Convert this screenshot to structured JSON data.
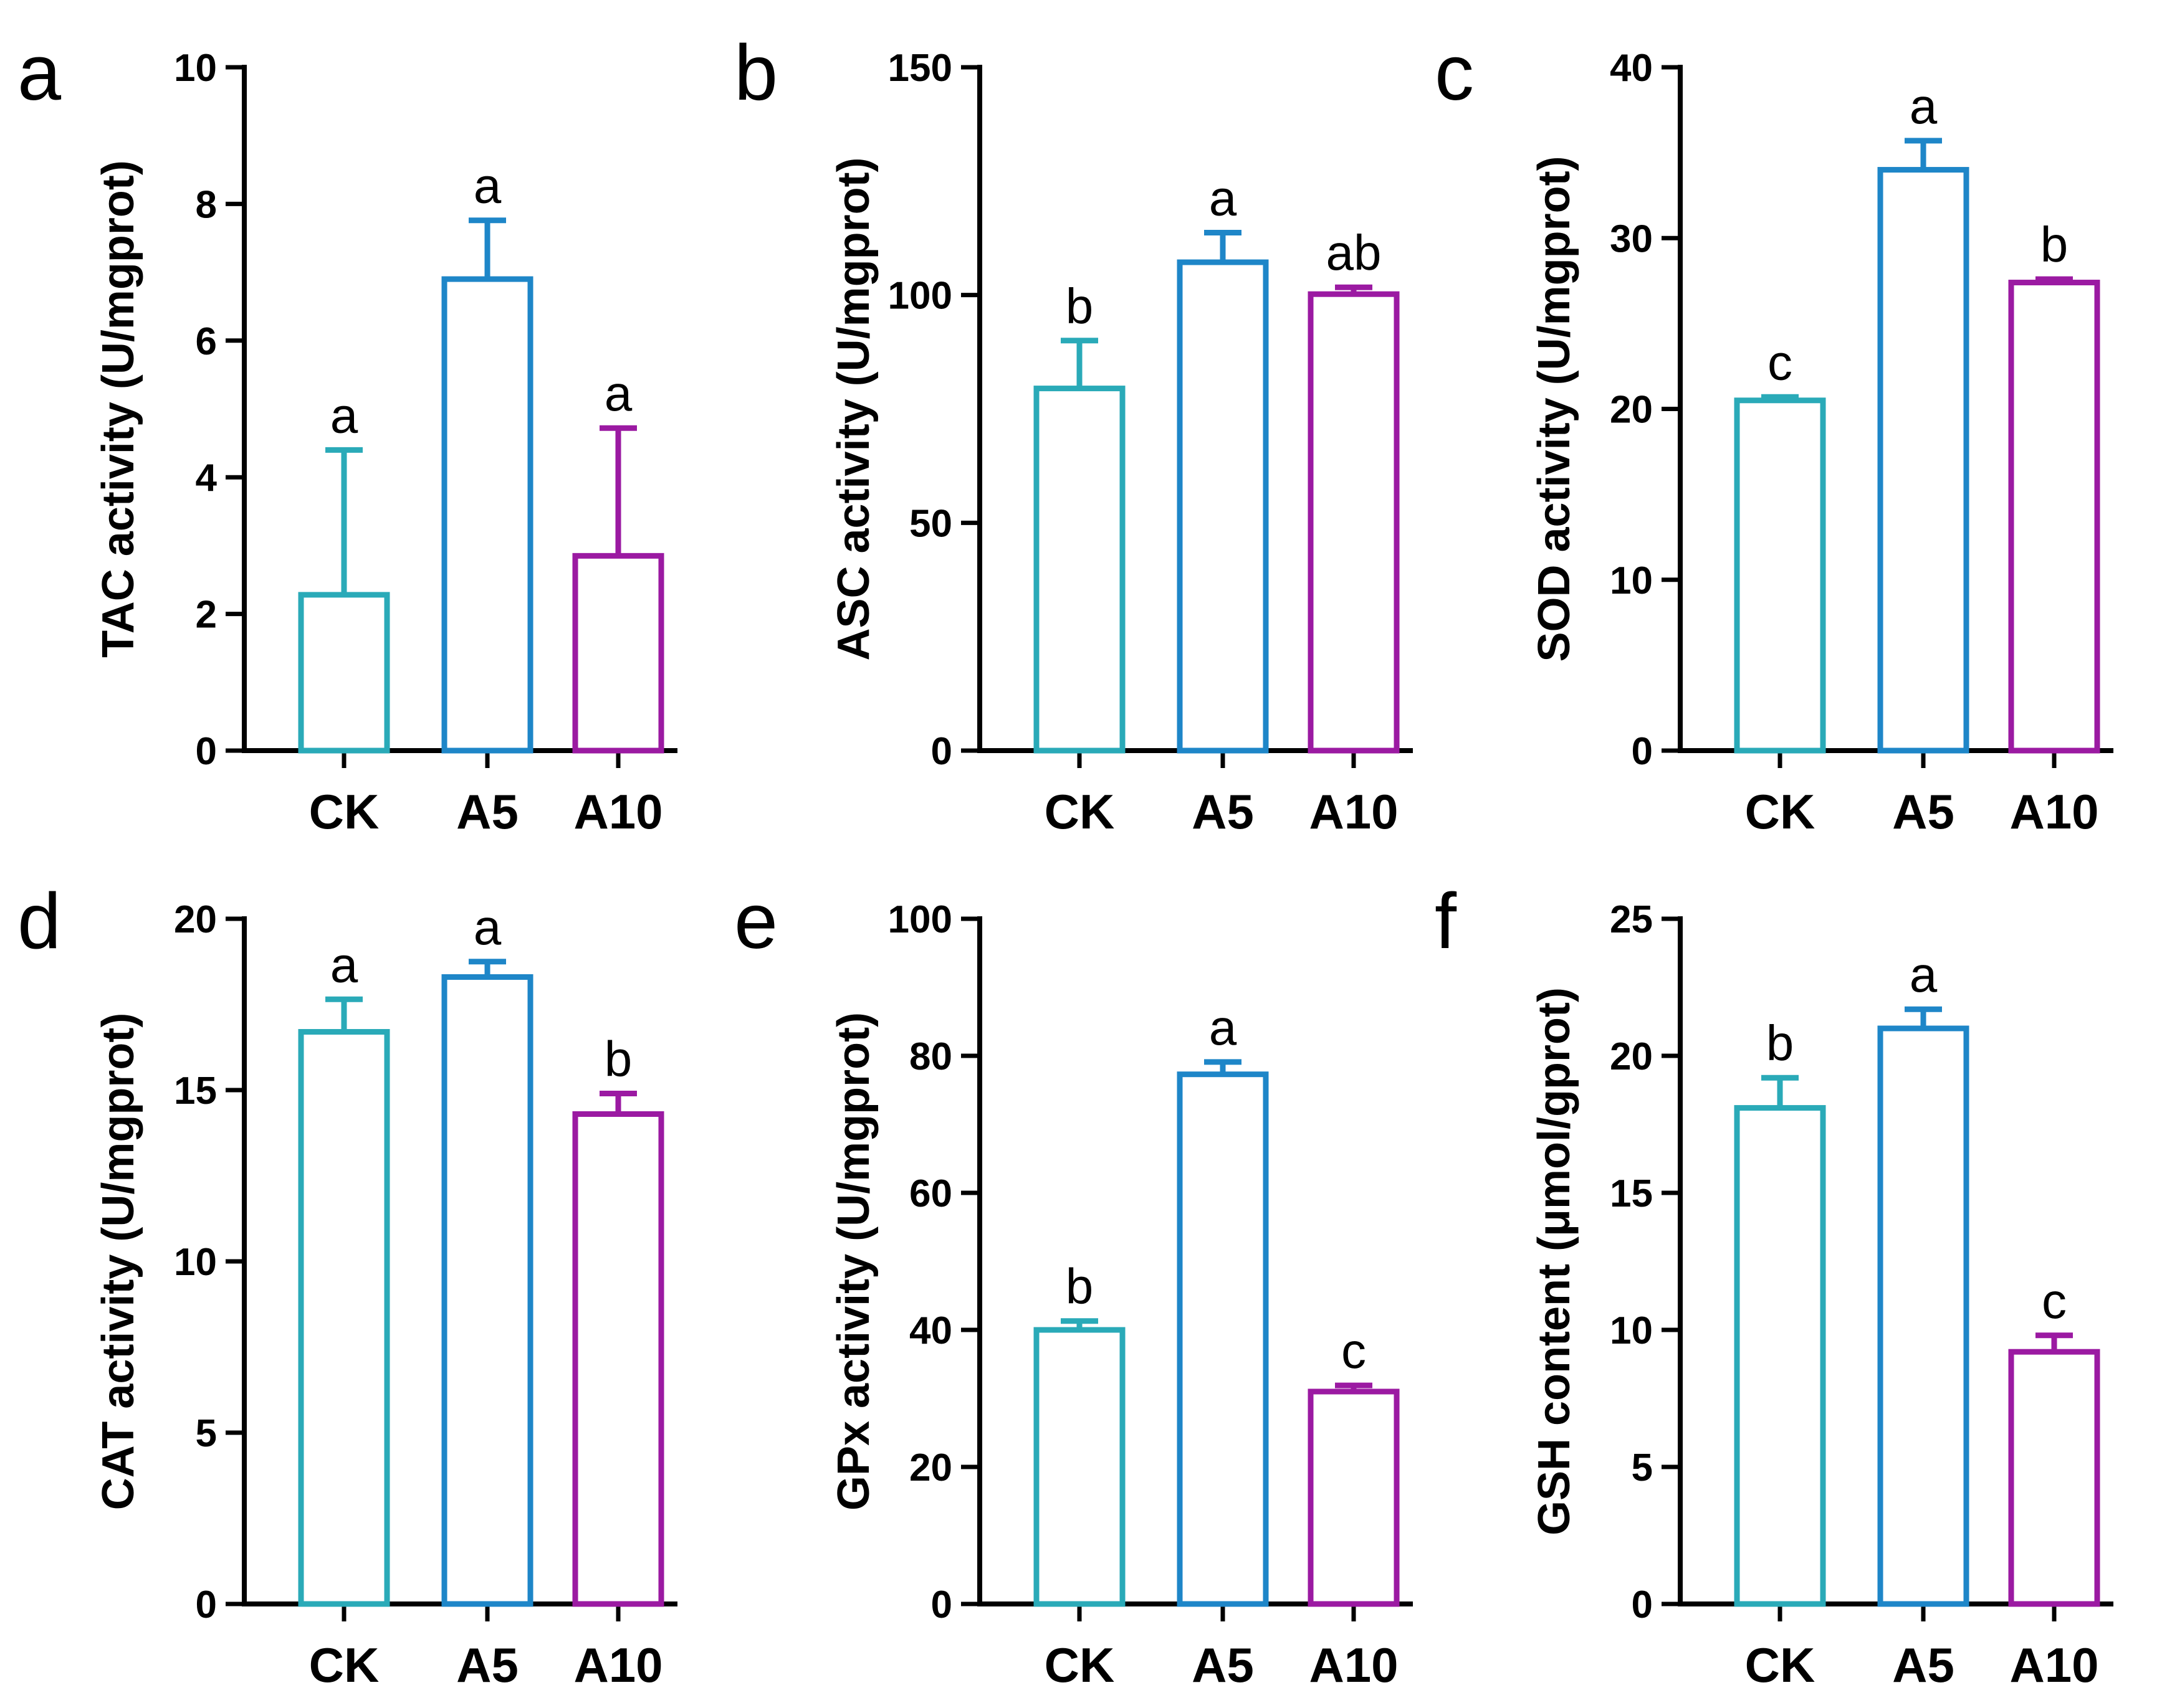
{
  "colors": {
    "CK": "#2aaab8",
    "A5": "#1e86c8",
    "A10": "#9b1aa2",
    "axis": "#000000"
  },
  "chart_data": [
    {
      "type": "bar",
      "panel": "a",
      "title": "",
      "ylabel": "TAC activity (U/mgprot)",
      "categories": [
        "CK",
        "A5",
        "A10"
      ],
      "values": [
        2.28,
        6.9,
        2.85
      ],
      "errors": [
        2.12,
        0.86,
        1.87
      ],
      "labels": [
        "a",
        "a",
        "a"
      ],
      "ylim": [
        0,
        10
      ],
      "yticks": [
        0,
        2,
        4,
        6,
        8,
        10
      ],
      "ytick_labels": [
        "0",
        "2",
        "4",
        "6",
        "8",
        "10"
      ]
    },
    {
      "type": "bar",
      "panel": "b",
      "title": "",
      "ylabel": "ASC activity (U/mgprot)",
      "categories": [
        "CK",
        "A5",
        "A10"
      ],
      "values": [
        79.5,
        107.2,
        100.2
      ],
      "errors": [
        10.5,
        6.5,
        1.5
      ],
      "labels": [
        "b",
        "a",
        "ab"
      ],
      "ylim": [
        0,
        150
      ],
      "yticks": [
        0,
        50,
        100,
        150
      ],
      "ytick_labels": [
        "0",
        "50",
        "100",
        "150"
      ]
    },
    {
      "type": "bar",
      "panel": "c",
      "title": "",
      "ylabel": "SOD activity (U/mgprot)",
      "categories": [
        "CK",
        "A5",
        "A10"
      ],
      "values": [
        20.5,
        34.0,
        27.4
      ],
      "errors": [
        0.2,
        1.7,
        0.2
      ],
      "labels": [
        "c",
        "a",
        "b"
      ],
      "ylim": [
        0,
        40
      ],
      "yticks": [
        0,
        10,
        20,
        30,
        40
      ],
      "ytick_labels": [
        "0",
        "10",
        "20",
        "30",
        "40"
      ]
    },
    {
      "type": "bar",
      "panel": "d",
      "title": "",
      "ylabel": "CAT activity (U/mgprot)",
      "categories": [
        "CK",
        "A5",
        "A10"
      ],
      "values": [
        16.7,
        18.3,
        14.3
      ],
      "errors": [
        0.95,
        0.45,
        0.6
      ],
      "labels": [
        "a",
        "a",
        "b"
      ],
      "ylim": [
        0,
        20
      ],
      "yticks": [
        0,
        5,
        10,
        15,
        20
      ],
      "ytick_labels": [
        "0",
        "5",
        "10",
        "15",
        "20"
      ]
    },
    {
      "type": "bar",
      "panel": "e",
      "title": "",
      "ylabel": "GPx activity (U/mgprot)",
      "categories": [
        "CK",
        "A5",
        "A10"
      ],
      "values": [
        40.0,
        77.3,
        31.0
      ],
      "errors": [
        1.3,
        1.8,
        0.9
      ],
      "labels": [
        "b",
        "a",
        "c"
      ],
      "ylim": [
        0,
        100
      ],
      "yticks": [
        0,
        20,
        40,
        60,
        80,
        100
      ],
      "ytick_labels": [
        "0",
        "20",
        "40",
        "60",
        "80",
        "100"
      ]
    },
    {
      "type": "bar",
      "panel": "f",
      "title": "",
      "ylabel": "GSH content (μmol/gprot)",
      "categories": [
        "CK",
        "A5",
        "A10"
      ],
      "values": [
        18.1,
        21.0,
        9.2
      ],
      "errors": [
        1.1,
        0.7,
        0.6
      ],
      "labels": [
        "b",
        "a",
        "c"
      ],
      "ylim": [
        0,
        25
      ],
      "yticks": [
        0,
        5,
        10,
        15,
        20,
        25
      ],
      "ytick_labels": [
        "0",
        "5",
        "10",
        "15",
        "20",
        "25"
      ]
    }
  ]
}
